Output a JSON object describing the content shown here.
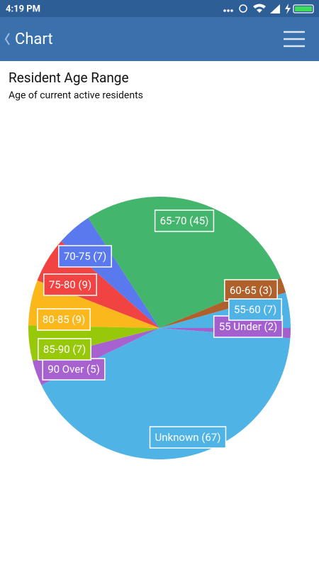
{
  "status_bar": {
    "time": "4:19 PM"
  },
  "app_bar": {
    "title": "Chart"
  },
  "chart_data": {
    "type": "pie",
    "title": "Resident Age Range",
    "subtitle": "Age of current active residents",
    "categories": [
      "55 Under (2)",
      "Unknown (67)",
      "90 Over (5)",
      "85-90 (7)",
      "80-85 (9)",
      "75-80 (9)",
      "70-75 (7)",
      "65-70 (45)",
      "60-65 (3)",
      "55-60 (7)"
    ],
    "values": [
      2,
      67,
      5,
      7,
      9,
      9,
      7,
      45,
      3,
      7
    ],
    "colors": [
      "#a45fcf",
      "#4fb3e6",
      "#a862cf",
      "#97c90a",
      "#fbb81d",
      "#f24343",
      "#5b79ef",
      "#44b56c",
      "#b0612b",
      "#4fb3e6"
    ]
  }
}
